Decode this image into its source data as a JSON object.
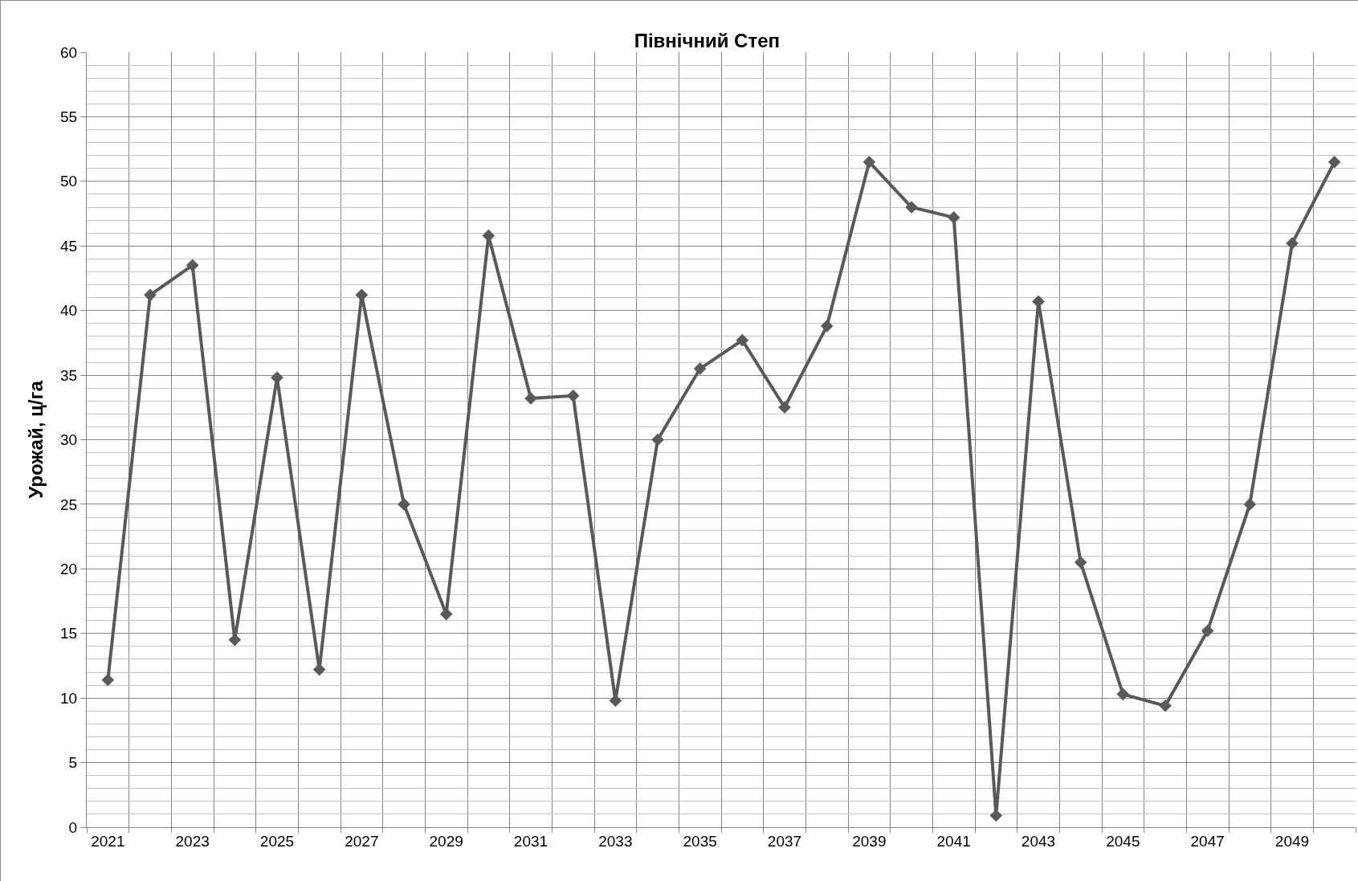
{
  "chart_data": {
    "type": "line",
    "title": "Північний Степ",
    "ylabel": "Урожай, ц/га",
    "categories": [
      "2021",
      null,
      "2023",
      null,
      "2025",
      null,
      "2027",
      null,
      "2029",
      null,
      "2031",
      null,
      "2033",
      null,
      "2035",
      null,
      "2037",
      null,
      "2039",
      null,
      "2041",
      null,
      "2043",
      null,
      "2045",
      null,
      "2047",
      null,
      "2049",
      null
    ],
    "series": [
      {
        "color": "#595959",
        "values": [
          11.4,
          41.2,
          43.5,
          14.5,
          34.8,
          12.2,
          41.2,
          25.0,
          16.5,
          45.8,
          33.2,
          33.4,
          9.8,
          30.0,
          35.5,
          37.7,
          32.5,
          38.8,
          51.5,
          48.0,
          47.2,
          0.9,
          40.7,
          20.5,
          10.3,
          9.4,
          15.2,
          25.0,
          45.2,
          51.5
        ]
      }
    ],
    "ylim": [
      0,
      60
    ],
    "yticks": [
      0,
      5,
      10,
      15,
      20,
      25,
      30,
      35,
      40,
      45,
      50,
      55,
      60
    ],
    "grid": true,
    "marker": "diamond",
    "line_style": "solid"
  }
}
